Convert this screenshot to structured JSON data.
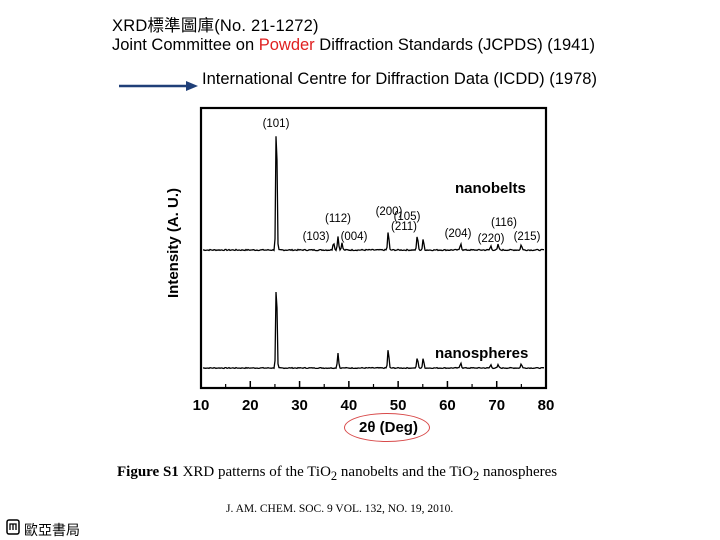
{
  "header": {
    "line1": "XRD標準圖庫(No. 21-1272)",
    "line2_pre": "Joint Committee on ",
    "line2_highlight": "Powder",
    "line2_post": " Diffraction Standards (JCPDS) (1941)",
    "line3": "International Centre for Diffraction Data (ICDD) (1978)"
  },
  "colors": {
    "highlight": "#e02020",
    "ring": "#d84a4a",
    "arrow": "#1f3f78",
    "trace": "#000000"
  },
  "chart_data": {
    "type": "line",
    "xlabel": "2θ (Deg)",
    "ylabel": "Intensity (A. U.)",
    "xlim": [
      10,
      80
    ],
    "xticks": [
      10,
      20,
      30,
      40,
      50,
      60,
      70,
      80
    ],
    "grid": false,
    "series": [
      {
        "name": "nanobelts",
        "peaks": [
          {
            "x": 25.3,
            "h": 1.0
          },
          {
            "x": 36.9,
            "h": 0.06
          },
          {
            "x": 37.8,
            "h": 0.1
          },
          {
            "x": 38.6,
            "h": 0.05
          },
          {
            "x": 48.0,
            "h": 0.14
          },
          {
            "x": 53.9,
            "h": 0.11
          },
          {
            "x": 55.1,
            "h": 0.08
          },
          {
            "x": 62.7,
            "h": 0.05
          },
          {
            "x": 68.8,
            "h": 0.03
          },
          {
            "x": 70.3,
            "h": 0.04
          },
          {
            "x": 75.0,
            "h": 0.04
          }
        ],
        "annotations": [
          {
            "label": "(101)",
            "x": 25.3
          },
          {
            "label": "(112)",
            "x": 37.8
          },
          {
            "label": "(103)",
            "x": 36.9
          },
          {
            "label": "(004)",
            "x": 38.6
          },
          {
            "label": "(200)",
            "x": 48.0
          },
          {
            "label": "(211)",
            "x": 55.1
          },
          {
            "label": "(105)",
            "x": 53.9
          },
          {
            "label": "(204)",
            "x": 62.7
          },
          {
            "label": "(116)",
            "x": 68.8
          },
          {
            "label": "(220)",
            "x": 70.3
          },
          {
            "label": "(215)",
            "x": 75.0
          }
        ]
      },
      {
        "name": "nanospheres",
        "peaks": [
          {
            "x": 25.3,
            "h": 0.85
          },
          {
            "x": 37.8,
            "h": 0.14
          },
          {
            "x": 48.0,
            "h": 0.18
          },
          {
            "x": 53.9,
            "h": 0.1
          },
          {
            "x": 55.1,
            "h": 0.09
          },
          {
            "x": 62.7,
            "h": 0.05
          },
          {
            "x": 68.8,
            "h": 0.03
          },
          {
            "x": 70.3,
            "h": 0.03
          },
          {
            "x": 75.0,
            "h": 0.04
          }
        ]
      }
    ]
  },
  "caption": {
    "figure": "Figure S1",
    "text_a": " XRD patterns of the TiO",
    "sub_a": "2",
    "text_b": " nanobelts and the TiO",
    "sub_b": "2",
    "text_c": " nanospheres"
  },
  "reference": "J. AM. CHEM. SOC. 9 VOL. 132, NO. 19, 2010.",
  "publisher": "歐亞書局"
}
